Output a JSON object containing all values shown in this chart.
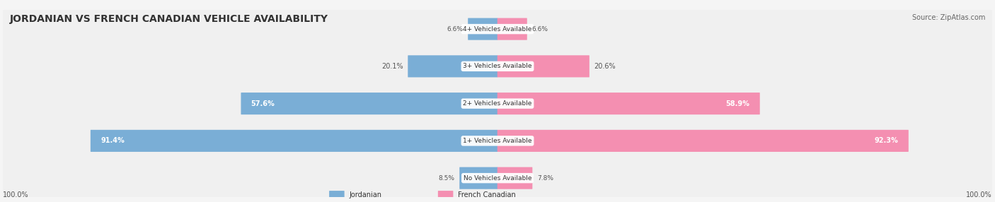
{
  "title": "JORDANIAN VS FRENCH CANADIAN VEHICLE AVAILABILITY",
  "source": "Source: ZipAtlas.com",
  "categories": [
    "No Vehicles Available",
    "1+ Vehicles Available",
    "2+ Vehicles Available",
    "3+ Vehicles Available",
    "4+ Vehicles Available"
  ],
  "jordanian": [
    8.5,
    91.4,
    57.6,
    20.1,
    6.6
  ],
  "french_canadian": [
    7.8,
    92.3,
    58.9,
    20.6,
    6.6
  ],
  "jordanian_color": "#7aaed6",
  "french_canadian_color": "#f48fb1",
  "bar_bg_color": "#e8e8e8",
  "row_bg_colors": [
    "#f0f0f0",
    "#e8e8e8"
  ],
  "label_color_jordanian": "#5a8ab5",
  "label_color_french": "#e07090",
  "max_value": 100.0,
  "figsize": [
    14.06,
    2.86
  ],
  "dpi": 100
}
